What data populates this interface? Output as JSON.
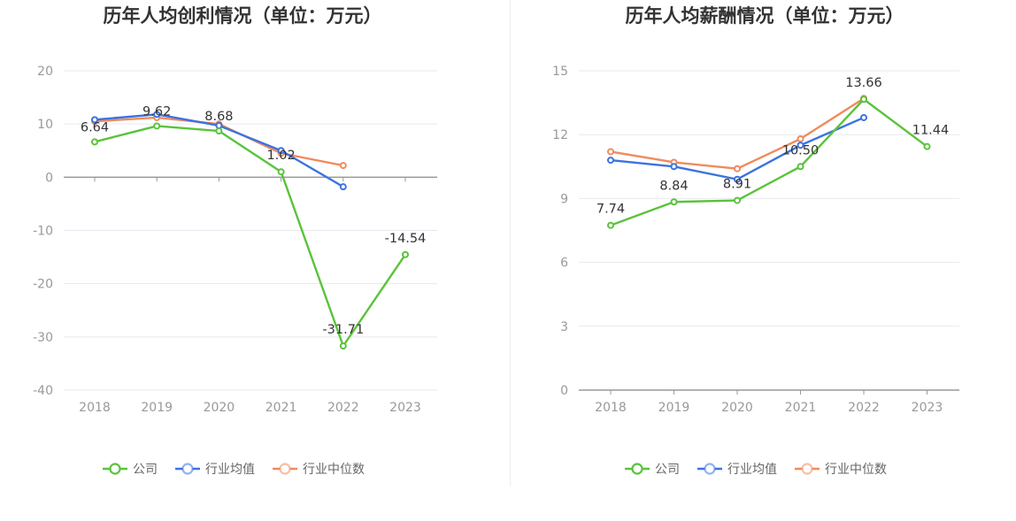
{
  "chart_data": [
    {
      "type": "line",
      "title": "历年人均创利情况（单位：万元）",
      "categories": [
        "2018",
        "2019",
        "2020",
        "2021",
        "2022",
        "2023"
      ],
      "ylim": [
        -40,
        20
      ],
      "yticks": [
        "20",
        "10",
        "0",
        "-10",
        "-20",
        "-30",
        "-40"
      ],
      "grid": true,
      "legend_position": "bottom",
      "series": [
        {
          "name": "公司",
          "color": "#5ac33a",
          "values": [
            6.64,
            9.62,
            8.68,
            1.02,
            -31.71,
            -14.54
          ],
          "labels": [
            "6.64",
            "9.62",
            "8.68",
            "1.02",
            "-31.71",
            "-14.54"
          ]
        },
        {
          "name": "行业均值",
          "color": "#3b73e0",
          "values": [
            10.8,
            11.8,
            9.7,
            5.0,
            -1.8,
            null
          ]
        },
        {
          "name": "行业中位数",
          "color": "#f08a5d",
          "values": [
            10.5,
            11.2,
            10.0,
            4.5,
            2.2,
            null
          ]
        }
      ]
    },
    {
      "type": "line",
      "title": "历年人均薪酬情况（单位：万元）",
      "categories": [
        "2018",
        "2019",
        "2020",
        "2021",
        "2022",
        "2023"
      ],
      "ylim": [
        0,
        15
      ],
      "yticks": [
        "15",
        "12",
        "9",
        "6",
        "3",
        "0"
      ],
      "grid": true,
      "legend_position": "bottom",
      "series": [
        {
          "name": "公司",
          "color": "#5ac33a",
          "values": [
            7.74,
            8.84,
            8.91,
            10.5,
            13.66,
            11.44
          ],
          "labels": [
            "7.74",
            "8.84",
            "8.91",
            "10.50",
            "13.66",
            "11.44"
          ]
        },
        {
          "name": "行业均值",
          "color": "#3b73e0",
          "values": [
            10.8,
            10.5,
            9.9,
            11.5,
            12.8,
            null
          ]
        },
        {
          "name": "行业中位数",
          "color": "#f08a5d",
          "values": [
            11.2,
            10.7,
            10.4,
            11.8,
            13.7,
            null
          ]
        }
      ]
    }
  ]
}
